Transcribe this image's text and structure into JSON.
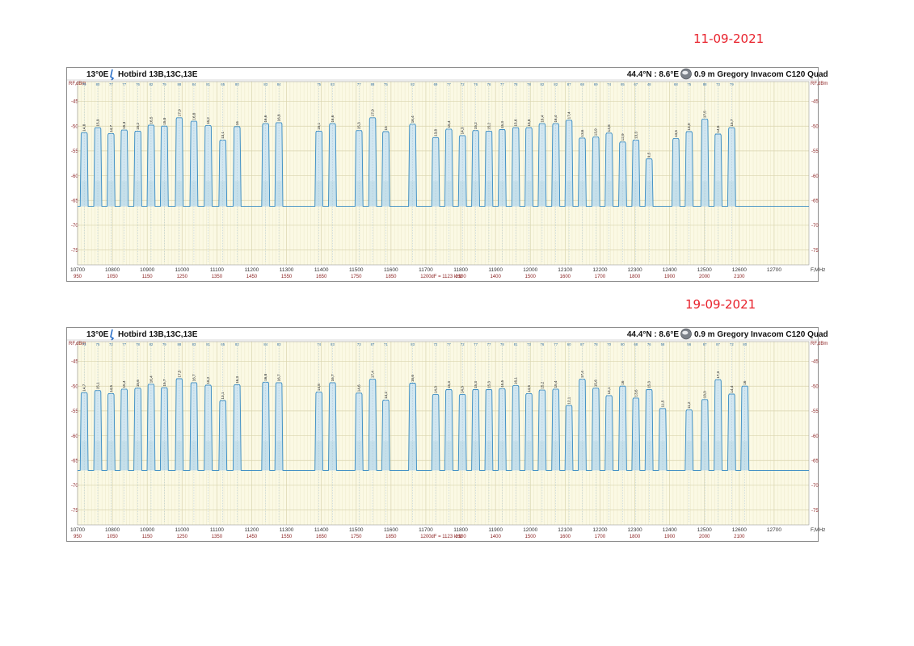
{
  "dates": [
    "11-09-2021",
    "19-09-2021"
  ],
  "header": {
    "position": "13°0E",
    "satellite": "Hotbird 13B,13C,13E",
    "location": "44.4°N : 8.6°E",
    "antenna": "0.9 m Gregory",
    "lnb": "Invacom C120 Quad",
    "y_unit": "RF,dBm",
    "x_unit": "F,MHz",
    "rbw": "dF = 1123 kHz"
  },
  "chart_data": [
    {
      "type": "line",
      "date": "11-09-2021",
      "xlim": [
        10700,
        12800
      ],
      "ylim": [
        -78,
        -41
      ],
      "x_ticks": [
        10700,
        10800,
        10900,
        11000,
        11100,
        11200,
        11300,
        11400,
        11500,
        11600,
        11700,
        11800,
        11900,
        12000,
        12100,
        12200,
        12300,
        12400,
        12500,
        12600,
        12700
      ],
      "if_ticks": [
        "950",
        "1050",
        "1150",
        "1250",
        "1350",
        "1450",
        "1550",
        "1650",
        "1750",
        "1850",
        "1200",
        "1300",
        "1400",
        "1500",
        "1600",
        "1700",
        "1800",
        "1900",
        "2000",
        "2100"
      ],
      "y_ticks": [
        -45,
        -50,
        -55,
        -60,
        -65,
        -70,
        -75
      ],
      "noise_floor": -66.2,
      "grid": true,
      "carriers": [
        {
          "f": 10719,
          "lvl": -51.3,
          "bw": 23,
          "cn": "14,8",
          "q": "79"
        },
        {
          "f": 10758,
          "lvl": -50.3,
          "bw": 23,
          "cn": "15,9",
          "q": "80"
        },
        {
          "f": 10796,
          "lvl": -51.5,
          "bw": 23,
          "cn": "14,7",
          "q": "77"
        },
        {
          "f": 10834,
          "lvl": -50.8,
          "bw": 23,
          "cn": "15,3",
          "q": "77"
        },
        {
          "f": 10873,
          "lvl": -51.0,
          "bw": 23,
          "cn": "15,2",
          "q": "76"
        },
        {
          "f": 10911,
          "lvl": -49.8,
          "bw": 23,
          "cn": "16,5",
          "q": "82"
        },
        {
          "f": 10949,
          "lvl": -50.0,
          "bw": 23,
          "cn": "15,8",
          "q": "79"
        },
        {
          "f": 10992,
          "lvl": -48.3,
          "bw": 23,
          "cn": "17,9",
          "q": "88"
        },
        {
          "f": 11034,
          "lvl": -49.0,
          "bw": 23,
          "cn": "16,8",
          "q": "84"
        },
        {
          "f": 11075,
          "lvl": -49.9,
          "bw": 23,
          "cn": "16,2",
          "q": "81"
        },
        {
          "f": 11117,
          "lvl": -52.8,
          "bw": 23,
          "cn": "13,1",
          "q": "65"
        },
        {
          "f": 11158,
          "lvl": -50.1,
          "bw": 23,
          "cn": "16",
          "q": "80"
        },
        {
          "f": 11240,
          "lvl": -49.5,
          "bw": 23,
          "cn": "16,6",
          "q": "83"
        },
        {
          "f": 11278,
          "lvl": -49.3,
          "bw": 23,
          "cn": "16,8",
          "q": "84"
        },
        {
          "f": 11393,
          "lvl": -51.0,
          "bw": 23,
          "cn": "15,1",
          "q": "75"
        },
        {
          "f": 11432,
          "lvl": -49.5,
          "bw": 23,
          "cn": "16,6",
          "q": "83"
        },
        {
          "f": 11508,
          "lvl": -50.9,
          "bw": 23,
          "cn": "15,3",
          "q": "77"
        },
        {
          "f": 11547,
          "lvl": -48.3,
          "bw": 23,
          "cn": "17,9",
          "q": "88"
        },
        {
          "f": 11585,
          "lvl": -51.1,
          "bw": 23,
          "cn": "15",
          "q": "75"
        },
        {
          "f": 11662,
          "lvl": -49.6,
          "bw": 23,
          "cn": "16,4",
          "q": "82"
        },
        {
          "f": 11728,
          "lvl": -52.3,
          "bw": 23,
          "cn": "13,8",
          "q": "69"
        },
        {
          "f": 11766,
          "lvl": -50.6,
          "bw": 23,
          "cn": "15,4",
          "q": "77"
        },
        {
          "f": 11805,
          "lvl": -51.9,
          "bw": 23,
          "cn": "14,3",
          "q": "72"
        },
        {
          "f": 11843,
          "lvl": -50.9,
          "bw": 23,
          "cn": "15,2",
          "q": "76"
        },
        {
          "f": 11881,
          "lvl": -51.0,
          "bw": 23,
          "cn": "15,2",
          "q": "76"
        },
        {
          "f": 11919,
          "lvl": -50.7,
          "bw": 23,
          "cn": "15,3",
          "q": "77"
        },
        {
          "f": 11958,
          "lvl": -50.3,
          "bw": 23,
          "cn": "15,6",
          "q": "78"
        },
        {
          "f": 11996,
          "lvl": -50.3,
          "bw": 23,
          "cn": "15,6",
          "q": "78"
        },
        {
          "f": 12034,
          "lvl": -49.5,
          "bw": 23,
          "cn": "16,4",
          "q": "82"
        },
        {
          "f": 12073,
          "lvl": -49.5,
          "bw": 23,
          "cn": "16,4",
          "q": "82"
        },
        {
          "f": 12111,
          "lvl": -48.8,
          "bw": 23,
          "cn": "17,4",
          "q": "87"
        },
        {
          "f": 12149,
          "lvl": -52.4,
          "bw": 23,
          "cn": "13,6",
          "q": "68"
        },
        {
          "f": 12188,
          "lvl": -52.2,
          "bw": 23,
          "cn": "13,9",
          "q": "69"
        },
        {
          "f": 12226,
          "lvl": -51.4,
          "bw": 23,
          "cn": "14,8",
          "q": "74"
        },
        {
          "f": 12265,
          "lvl": -53.2,
          "bw": 23,
          "cn": "12,9",
          "q": "65"
        },
        {
          "f": 12303,
          "lvl": -52.8,
          "bw": 23,
          "cn": "13,3",
          "q": "67"
        },
        {
          "f": 12341,
          "lvl": -56.6,
          "bw": 23,
          "cn": "9,5",
          "q": "48"
        },
        {
          "f": 12418,
          "lvl": -52.5,
          "bw": 23,
          "cn": "13,5",
          "q": "68"
        },
        {
          "f": 12456,
          "lvl": -51.1,
          "bw": 23,
          "cn": "14,9",
          "q": "75"
        },
        {
          "f": 12501,
          "lvl": -48.6,
          "bw": 23,
          "cn": "17,5",
          "q": "88"
        },
        {
          "f": 12539,
          "lvl": -51.6,
          "bw": 23,
          "cn": "14,5",
          "q": "73"
        },
        {
          "f": 12578,
          "lvl": -50.3,
          "bw": 23,
          "cn": "15,7",
          "q": "79"
        }
      ]
    },
    {
      "type": "line",
      "date": "19-09-2021",
      "xlim": [
        10700,
        12800
      ],
      "ylim": [
        -78,
        -41
      ],
      "x_ticks": [
        10700,
        10800,
        10900,
        11000,
        11100,
        11200,
        11300,
        11400,
        11500,
        11600,
        11700,
        11800,
        11900,
        12000,
        12100,
        12200,
        12300,
        12400,
        12500,
        12600,
        12700
      ],
      "if_ticks": [
        "950",
        "1050",
        "1150",
        "1250",
        "1350",
        "1450",
        "1550",
        "1650",
        "1750",
        "1850",
        "1200",
        "1300",
        "1400",
        "1500",
        "1600",
        "1700",
        "1800",
        "1900",
        "2000",
        "2100"
      ],
      "y_ticks": [
        -45,
        -50,
        -55,
        -60,
        -65,
        -70,
        -75
      ],
      "noise_floor": -67.0,
      "grid": true,
      "carriers": [
        {
          "f": 10719,
          "lvl": -51.3,
          "bw": 23,
          "cn": "14,7",
          "q": "73"
        },
        {
          "f": 10758,
          "lvl": -50.9,
          "bw": 23,
          "cn": "15,1",
          "q": "75"
        },
        {
          "f": 10796,
          "lvl": -51.5,
          "bw": 23,
          "cn": "14,5",
          "q": "72"
        },
        {
          "f": 10834,
          "lvl": -50.6,
          "bw": 23,
          "cn": "15,4",
          "q": "77"
        },
        {
          "f": 10873,
          "lvl": -50.4,
          "bw": 23,
          "cn": "15,6",
          "q": "78"
        },
        {
          "f": 10911,
          "lvl": -49.6,
          "bw": 23,
          "cn": "16,4",
          "q": "82"
        },
        {
          "f": 10949,
          "lvl": -50.3,
          "bw": 23,
          "cn": "15,7",
          "q": "79"
        },
        {
          "f": 10992,
          "lvl": -48.5,
          "bw": 23,
          "cn": "17,5",
          "q": "88"
        },
        {
          "f": 11034,
          "lvl": -49.3,
          "bw": 23,
          "cn": "16,7",
          "q": "83"
        },
        {
          "f": 11075,
          "lvl": -49.8,
          "bw": 23,
          "cn": "16,2",
          "q": "81"
        },
        {
          "f": 11117,
          "lvl": -52.9,
          "bw": 23,
          "cn": "13,1",
          "q": "65"
        },
        {
          "f": 11158,
          "lvl": -49.7,
          "bw": 23,
          "cn": "16,3",
          "q": "82"
        },
        {
          "f": 11240,
          "lvl": -49.2,
          "bw": 23,
          "cn": "16,8",
          "q": "84"
        },
        {
          "f": 11278,
          "lvl": -49.3,
          "bw": 23,
          "cn": "16,7",
          "q": "83"
        },
        {
          "f": 11393,
          "lvl": -51.2,
          "bw": 23,
          "cn": "14,8",
          "q": "74"
        },
        {
          "f": 11432,
          "lvl": -49.3,
          "bw": 23,
          "cn": "16,7",
          "q": "83"
        },
        {
          "f": 11508,
          "lvl": -51.4,
          "bw": 23,
          "cn": "14,6",
          "q": "73"
        },
        {
          "f": 11547,
          "lvl": -48.6,
          "bw": 23,
          "cn": "17,4",
          "q": "87"
        },
        {
          "f": 11585,
          "lvl": -52.8,
          "bw": 23,
          "cn": "14,2",
          "q": "71"
        },
        {
          "f": 11662,
          "lvl": -49.4,
          "bw": 23,
          "cn": "16,6",
          "q": "83"
        },
        {
          "f": 11728,
          "lvl": -51.7,
          "bw": 23,
          "cn": "14,3",
          "q": "72"
        },
        {
          "f": 11766,
          "lvl": -50.7,
          "bw": 23,
          "cn": "15,3",
          "q": "77"
        },
        {
          "f": 11805,
          "lvl": -51.7,
          "bw": 23,
          "cn": "14,3",
          "q": "72"
        },
        {
          "f": 11843,
          "lvl": -50.7,
          "bw": 23,
          "cn": "15,3",
          "q": "77"
        },
        {
          "f": 11881,
          "lvl": -50.7,
          "bw": 23,
          "cn": "15,3",
          "q": "77"
        },
        {
          "f": 11919,
          "lvl": -50.5,
          "bw": 23,
          "cn": "15,5",
          "q": "78"
        },
        {
          "f": 11958,
          "lvl": -49.9,
          "bw": 23,
          "cn": "16,1",
          "q": "81"
        },
        {
          "f": 11996,
          "lvl": -51.5,
          "bw": 23,
          "cn": "14,5",
          "q": "73"
        },
        {
          "f": 12034,
          "lvl": -50.8,
          "bw": 23,
          "cn": "15,2",
          "q": "76"
        },
        {
          "f": 12073,
          "lvl": -50.6,
          "bw": 23,
          "cn": "15,4",
          "q": "77"
        },
        {
          "f": 12111,
          "lvl": -53.9,
          "bw": 23,
          "cn": "12,1",
          "q": "60"
        },
        {
          "f": 12149,
          "lvl": -48.6,
          "bw": 23,
          "cn": "17,4",
          "q": "87"
        },
        {
          "f": 12188,
          "lvl": -50.4,
          "bw": 23,
          "cn": "15,6",
          "q": "78"
        },
        {
          "f": 12226,
          "lvl": -51.9,
          "bw": 23,
          "cn": "14,1",
          "q": "70"
        },
        {
          "f": 12265,
          "lvl": -50.0,
          "bw": 23,
          "cn": "16",
          "q": "80"
        },
        {
          "f": 12303,
          "lvl": -52.4,
          "bw": 23,
          "cn": "13,6",
          "q": "68"
        },
        {
          "f": 12341,
          "lvl": -50.7,
          "bw": 23,
          "cn": "15,3",
          "q": "76"
        },
        {
          "f": 12380,
          "lvl": -54.5,
          "bw": 23,
          "cn": "11,5",
          "q": "58"
        },
        {
          "f": 12456,
          "lvl": -54.8,
          "bw": 23,
          "cn": "11,2",
          "q": "56"
        },
        {
          "f": 12501,
          "lvl": -52.7,
          "bw": 23,
          "cn": "13,3",
          "q": "67"
        },
        {
          "f": 12539,
          "lvl": -48.7,
          "bw": 23,
          "cn": "17,3",
          "q": "87"
        },
        {
          "f": 12578,
          "lvl": -51.6,
          "bw": 23,
          "cn": "14,4",
          "q": "72"
        },
        {
          "f": 12616,
          "lvl": -50.0,
          "bw": 23,
          "cn": "16",
          "q": "80"
        }
      ]
    }
  ]
}
